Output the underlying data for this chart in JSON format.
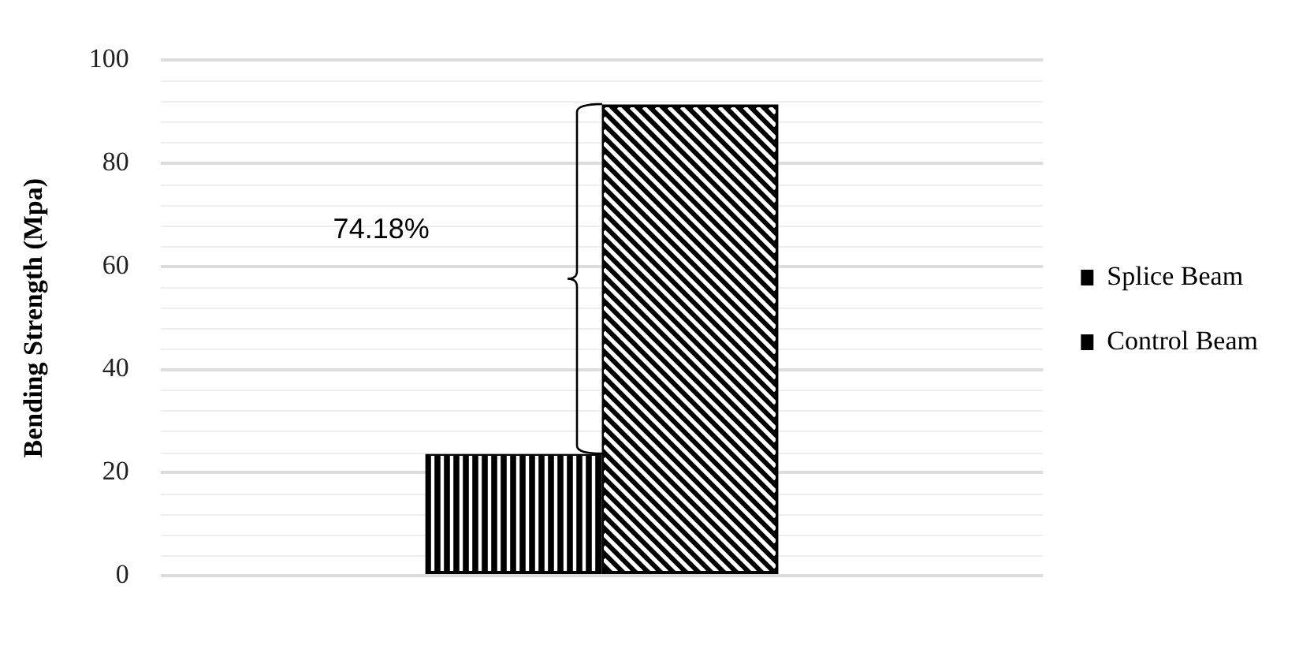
{
  "chart_data": {
    "type": "bar",
    "ylabel": "Bending Strength (Mpa)",
    "categories": [
      null
    ],
    "series": [
      {
        "name": "Splice Beam",
        "color": "#000000",
        "values": [
          23.6
        ]
      },
      {
        "name": "Control Beam",
        "color": "#000000",
        "values": [
          91.4
        ]
      }
    ],
    "ylim": [
      0,
      100
    ],
    "yticks": [
      0,
      20,
      40,
      60,
      80,
      100
    ],
    "grid": "y",
    "legend": "right",
    "annotations": [
      "74.18%"
    ]
  }
}
